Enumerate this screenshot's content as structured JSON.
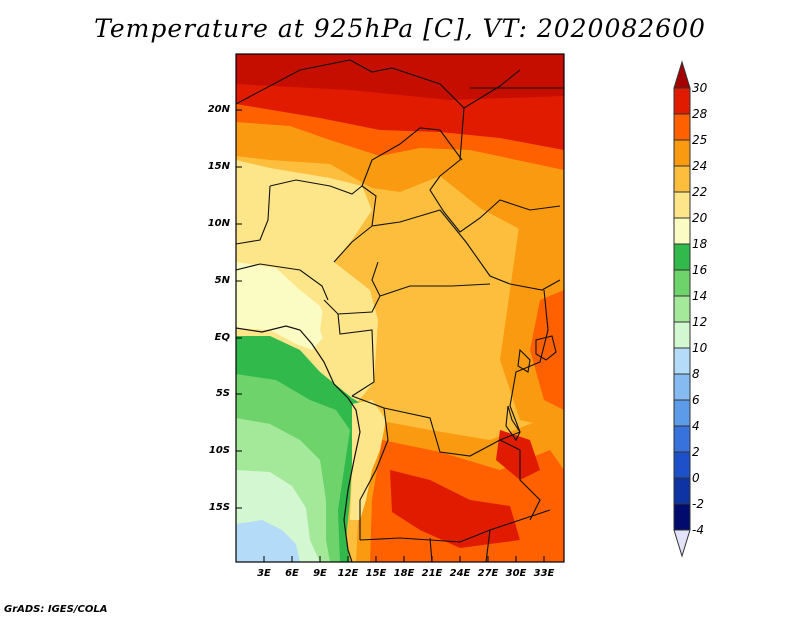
{
  "title": "Temperature at 925hPa [C], VT: 2020082600",
  "footer": "GrADS: IGES/COLA",
  "y_ticks": [
    "20N",
    "15N",
    "10N",
    "5N",
    "EQ",
    "5S",
    "10S",
    "15S"
  ],
  "x_ticks": [
    "3E",
    "6E",
    "9E",
    "12E",
    "15E",
    "18E",
    "21E",
    "24E",
    "27E",
    "30E",
    "33E"
  ],
  "colorbar": {
    "labels": [
      "30",
      "28",
      "25",
      "24",
      "22",
      "20",
      "18",
      "16",
      "14",
      "12",
      "10",
      "8",
      "6",
      "4",
      "2",
      "0",
      "-2",
      "-4"
    ],
    "colors": [
      "#a50000",
      "#e01b00",
      "#ff6000",
      "#fa9a10",
      "#fcbe3c",
      "#fde58a",
      "#fbfcc3",
      "#31b94c",
      "#6ed36a",
      "#a4e89a",
      "#d3f7d0",
      "#b4dcf8",
      "#86bbf2",
      "#5b9be8",
      "#3872dc",
      "#1e51c9",
      "#0e33a3",
      "#000b6e",
      "#e3e3fa"
    ]
  }
}
